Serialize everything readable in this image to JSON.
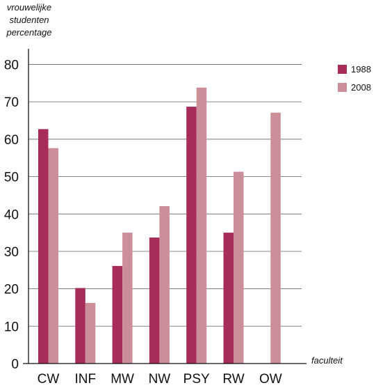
{
  "chart_data": {
    "type": "bar",
    "categories": [
      "CW",
      "INF",
      "MW",
      "NW",
      "PSY",
      "RW",
      "OW"
    ],
    "series": [
      {
        "name": "1988",
        "values": [
          62.7,
          20.2,
          26.1,
          33.7,
          68.7,
          35.0,
          null
        ],
        "color": "#a72c5a"
      },
      {
        "name": "2008",
        "values": [
          57.6,
          16.2,
          35.0,
          42.1,
          73.8,
          51.3,
          67.1
        ],
        "color": "#cc8e98"
      }
    ],
    "ylabel_lines": [
      "vrouwelijke",
      "studenten",
      "percentage"
    ],
    "xlabel": "faculteit",
    "ylim": [
      0,
      80
    ],
    "yticks": [
      0,
      10,
      20,
      30,
      40,
      50,
      60,
      70,
      80
    ],
    "grid": true,
    "legend_position": "top-right"
  }
}
